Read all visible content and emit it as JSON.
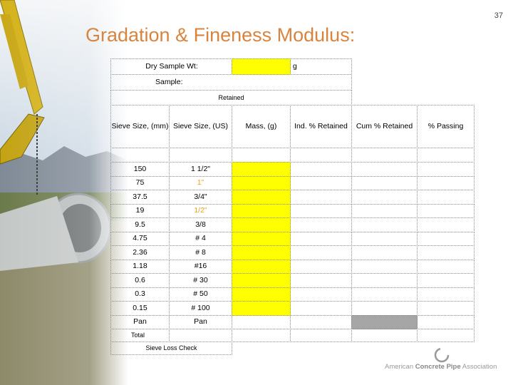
{
  "page_number": "37",
  "title": "Gradation & Fineness Modulus:",
  "form": {
    "dry_sample_label": "Dry Sample Wt:",
    "dry_sample_unit": "g",
    "sample_label": "Sample:",
    "retained_label": "Retained"
  },
  "table": {
    "headers": [
      "Sieve Size, (mm)",
      "Sieve Size, (US)",
      "Mass, (g)",
      "Ind. % Retained",
      "Cum % Retained",
      "% Passing"
    ],
    "rows": [
      {
        "mm": "150",
        "us": "1 1/2\""
      },
      {
        "mm": "75",
        "us": "1\"",
        "us_color": "#e8a317"
      },
      {
        "mm": "37.5",
        "us": "3/4\""
      },
      {
        "mm": "19",
        "us": "1/2\"",
        "us_color": "#e8a317"
      },
      {
        "mm": "9.5",
        "us": "3/8"
      },
      {
        "mm": "4.75",
        "us": "# 4"
      },
      {
        "mm": "2.36",
        "us": "# 8"
      },
      {
        "mm": "1.18",
        "us": "#16"
      },
      {
        "mm": "0.6",
        "us": "# 30"
      },
      {
        "mm": "0.3",
        "us": "# 50"
      },
      {
        "mm": "0.15",
        "us": "# 100"
      },
      {
        "mm": "Pan",
        "us": "Pan"
      }
    ],
    "total_label": "Total",
    "check_label": "Sieve Loss Check"
  },
  "logo": {
    "prefix": "American ",
    "bold": "Concrete Pipe",
    "suffix": " Association"
  }
}
